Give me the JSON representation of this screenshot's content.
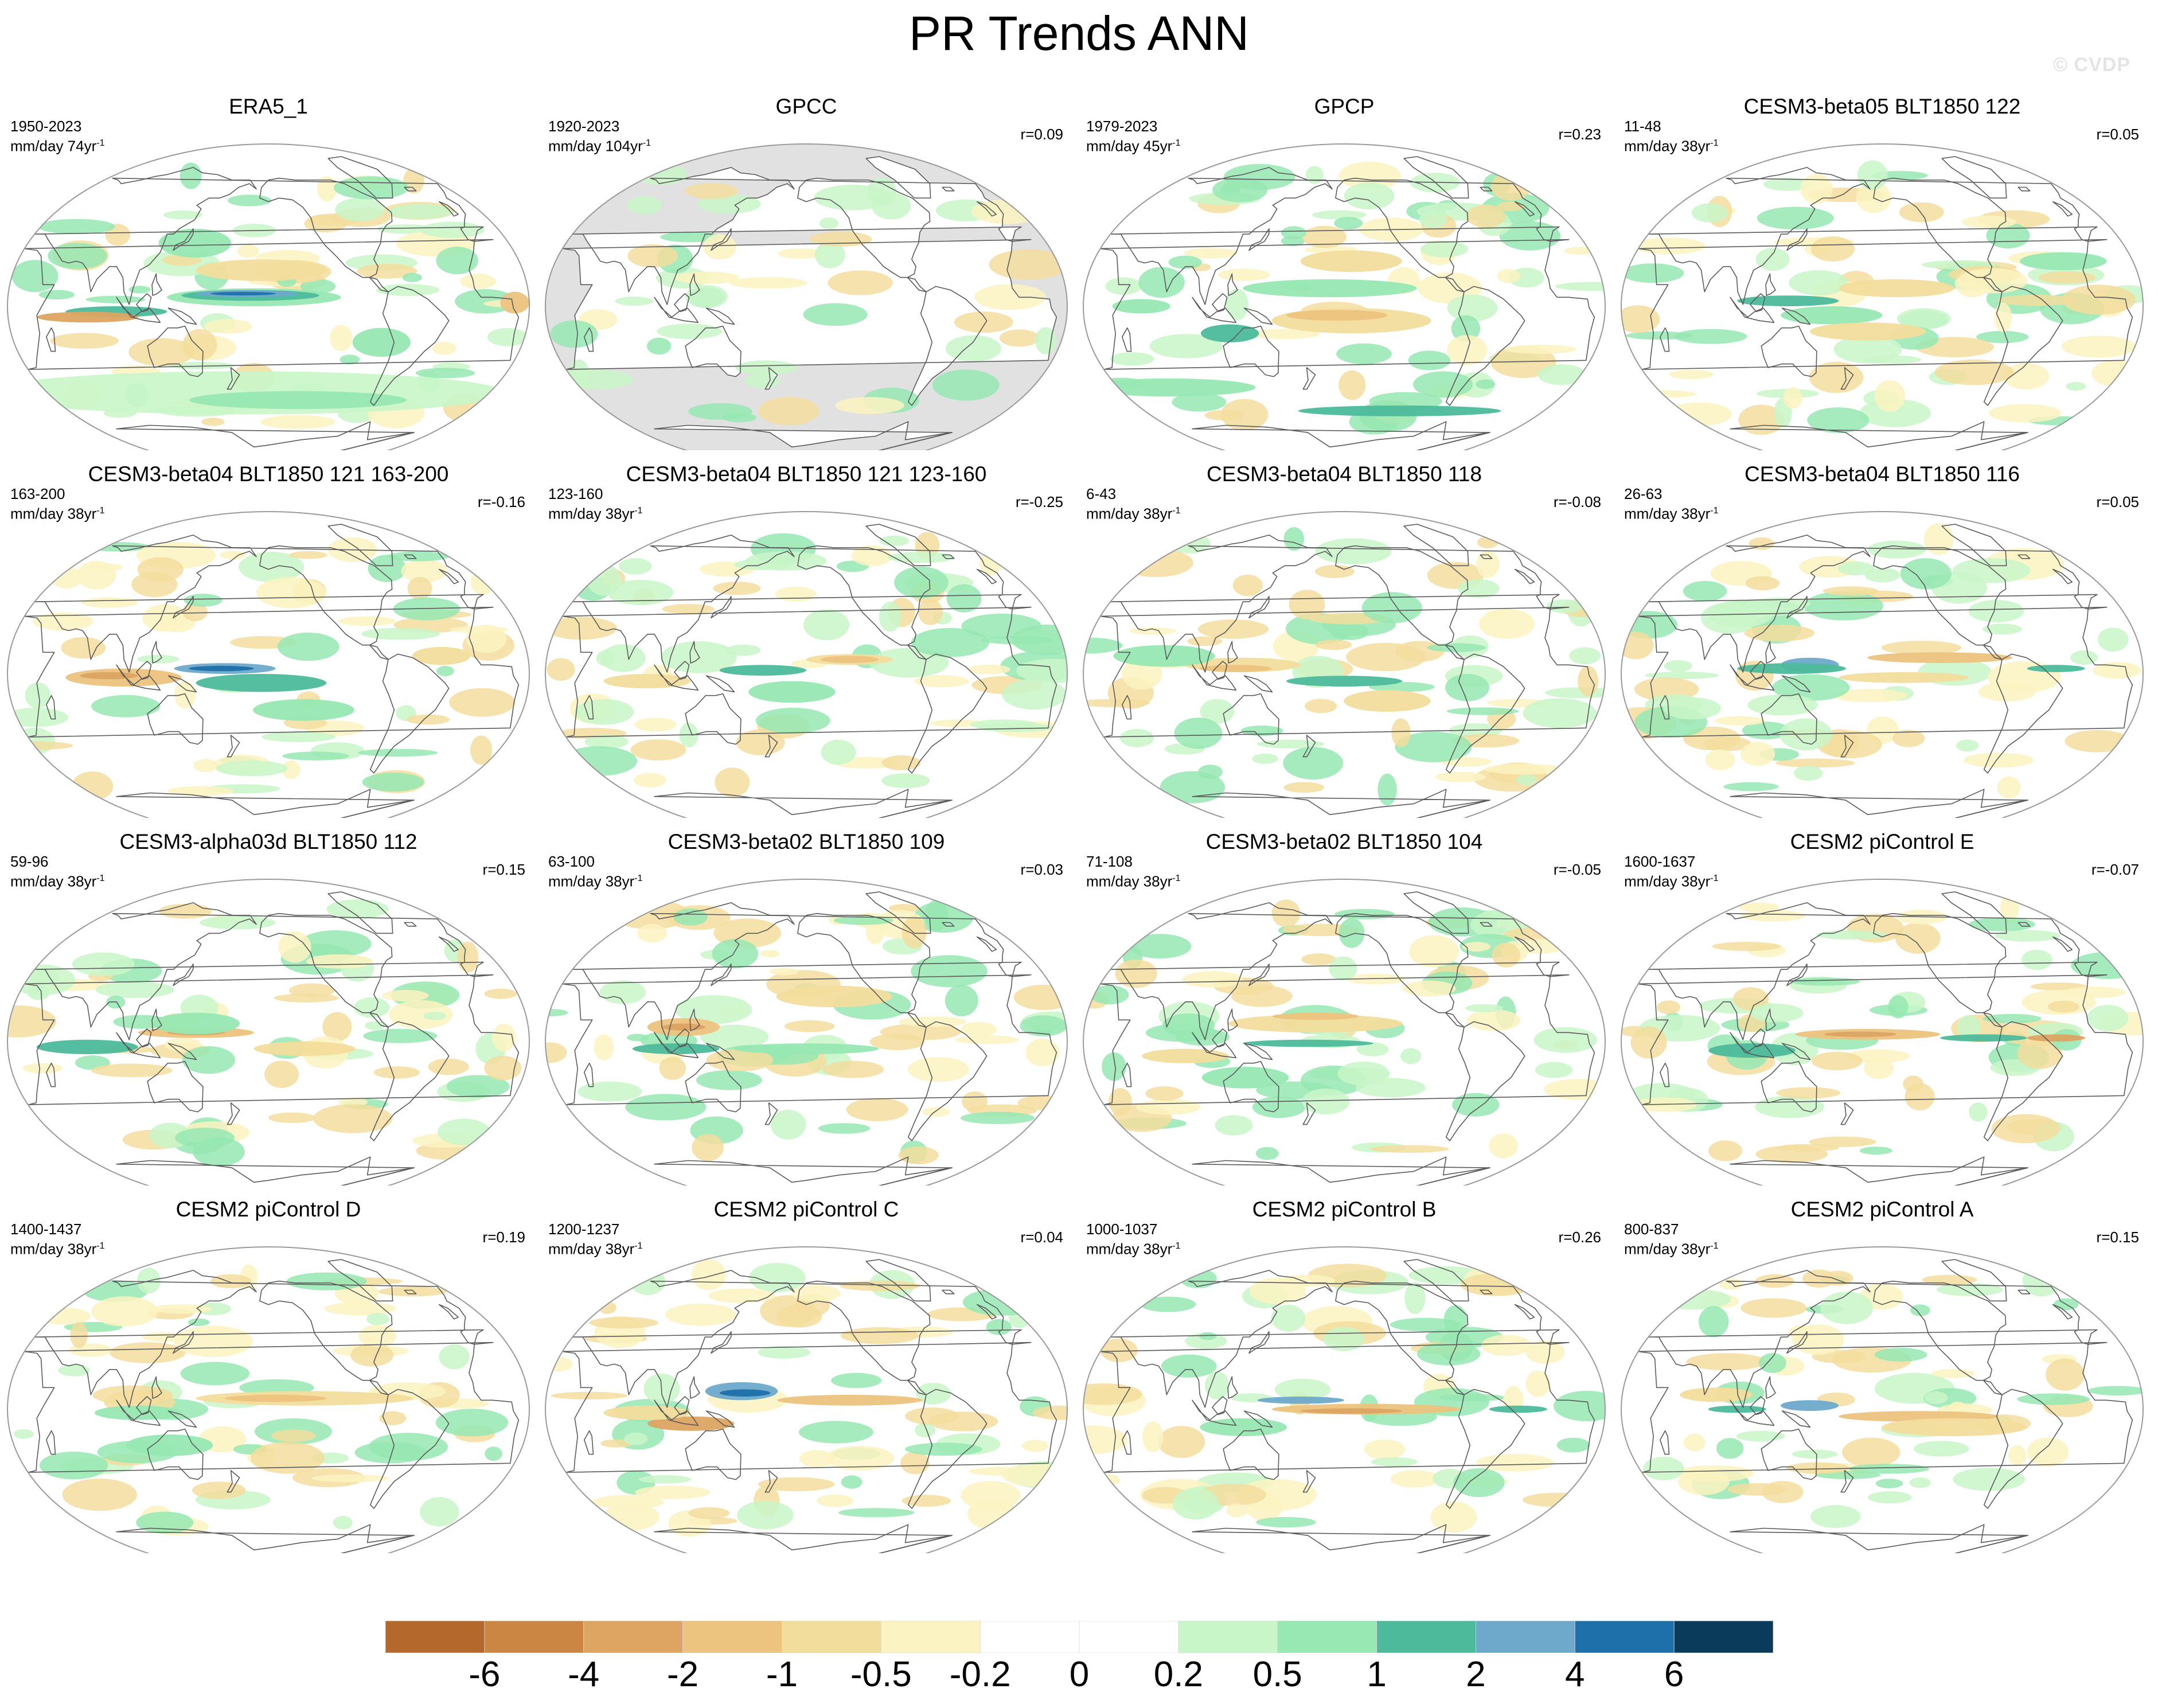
{
  "figure_title": "PR Trends ANN",
  "watermark": "© CVDP",
  "colors": {
    "coastline": "#5a5a5a",
    "ellipse_edge": "#9a9a9a",
    "missing": "#e1e1e1"
  },
  "colorbar": {
    "labels": [
      "-6",
      "-4",
      "-2",
      "-1",
      "-0.5",
      "-0.2",
      "0",
      "0.2",
      "0.5",
      "1",
      "2",
      "4",
      "6"
    ],
    "colors": [
      "#b5682b",
      "#cb8644",
      "#dda462",
      "#ecc37f",
      "#f3dd9d",
      "#fbf3c1",
      "#ffffff",
      "#ffffff",
      "#c9f6c9",
      "#97e8b3",
      "#4dbb9b",
      "#6ea9cb",
      "#1e70aa",
      "#0b3b5a"
    ]
  },
  "panels": [
    {
      "title": "ERA5_1",
      "years": "1950-2023",
      "units": "mm/day 74yr",
      "r": "",
      "pattern": "era5",
      "missing_ocean": false
    },
    {
      "title": "GPCC",
      "years": "1920-2023",
      "units": "mm/day 104yr",
      "r": "r=0.09",
      "pattern": "gpcc",
      "missing_ocean": true
    },
    {
      "title": "GPCP",
      "years": "1979-2023",
      "units": "mm/day 45yr",
      "r": "r=0.23",
      "pattern": "gpcp",
      "missing_ocean": false
    },
    {
      "title": "CESM3-beta05 BLT1850 122",
      "years": "11-48",
      "units": "mm/day 38yr",
      "r": "r=0.05",
      "pattern": "m1",
      "missing_ocean": false
    },
    {
      "title": "CESM3-beta04 BLT1850 121 163-200",
      "years": "163-200",
      "units": "mm/day 38yr",
      "r": "r=-0.16",
      "pattern": "m2",
      "missing_ocean": false
    },
    {
      "title": "CESM3-beta04 BLT1850 121 123-160",
      "years": "123-160",
      "units": "mm/day 38yr",
      "r": "r=-0.25",
      "pattern": "m3",
      "missing_ocean": false
    },
    {
      "title": "CESM3-beta04 BLT1850 118",
      "years": "6-43",
      "units": "mm/day 38yr",
      "r": "r=-0.08",
      "pattern": "m4",
      "missing_ocean": false
    },
    {
      "title": "CESM3-beta04 BLT1850 116",
      "years": "26-63",
      "units": "mm/day 38yr",
      "r": "r=0.05",
      "pattern": "m5",
      "missing_ocean": false
    },
    {
      "title": "CESM3-alpha03d BLT1850 112",
      "years": "59-96",
      "units": "mm/day 38yr",
      "r": "r=0.15",
      "pattern": "m6",
      "missing_ocean": false
    },
    {
      "title": "CESM3-beta02 BLT1850 109",
      "years": "63-100",
      "units": "mm/day 38yr",
      "r": "r=0.03",
      "pattern": "m7",
      "missing_ocean": false
    },
    {
      "title": "CESM3-beta02 BLT1850 104",
      "years": "71-108",
      "units": "mm/day 38yr",
      "r": "r=-0.05",
      "pattern": "m8",
      "missing_ocean": false
    },
    {
      "title": "CESM2 piControl E",
      "years": "1600-1637",
      "units": "mm/day 38yr",
      "r": "r=-0.07",
      "pattern": "m9",
      "missing_ocean": false
    },
    {
      "title": "CESM2 piControl D",
      "years": "1400-1437",
      "units": "mm/day 38yr",
      "r": "r=0.19",
      "pattern": "m10",
      "missing_ocean": false
    },
    {
      "title": "CESM2 piControl C",
      "years": "1200-1237",
      "units": "mm/day 38yr",
      "r": "r=0.04",
      "pattern": "m11",
      "missing_ocean": false
    },
    {
      "title": "CESM2 piControl B",
      "years": "1000-1037",
      "units": "mm/day 38yr",
      "r": "r=0.26",
      "pattern": "m12",
      "missing_ocean": false
    },
    {
      "title": "CESM2 piControl A",
      "years": "800-837",
      "units": "mm/day 38yr",
      "r": "r=0.15",
      "pattern": "m13",
      "missing_ocean": false
    }
  ]
}
